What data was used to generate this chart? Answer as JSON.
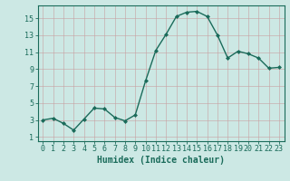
{
  "x": [
    0,
    1,
    2,
    3,
    4,
    5,
    6,
    7,
    8,
    9,
    10,
    11,
    12,
    13,
    14,
    15,
    16,
    17,
    18,
    19,
    20,
    21,
    22,
    23
  ],
  "y": [
    3,
    3.2,
    2.6,
    1.8,
    3.1,
    4.4,
    4.3,
    3.3,
    2.9,
    3.6,
    7.6,
    11.2,
    13.1,
    15.2,
    15.7,
    15.8,
    15.2,
    13.0,
    10.3,
    11.1,
    10.8,
    10.3,
    9.1,
    9.2
  ],
  "line_color": "#1a6b5a",
  "marker": "D",
  "markersize": 2.0,
  "linewidth": 1.0,
  "background_color": "#cce8e4",
  "grid_color_major": "#c8a0a0",
  "grid_color_minor": "#c8a0a0",
  "xlabel": "Humidex (Indice chaleur)",
  "xlabel_fontsize": 7,
  "tick_fontsize": 6,
  "xlim": [
    -0.5,
    23.5
  ],
  "ylim": [
    0.5,
    16.5
  ],
  "yticks": [
    1,
    3,
    5,
    7,
    9,
    11,
    13,
    15
  ],
  "xticks": [
    0,
    1,
    2,
    3,
    4,
    5,
    6,
    7,
    8,
    9,
    10,
    11,
    12,
    13,
    14,
    15,
    16,
    17,
    18,
    19,
    20,
    21,
    22,
    23
  ]
}
